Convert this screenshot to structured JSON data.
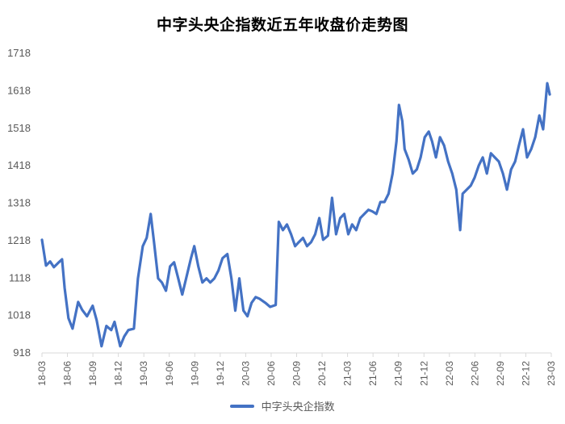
{
  "chart_data": {
    "type": "line",
    "title": "中字头央企指数近五年收盘价走势图",
    "xlabel": "",
    "ylabel": "",
    "ylim": [
      918,
      1718
    ],
    "yticks": [
      918,
      1018,
      1118,
      1218,
      1318,
      1418,
      1518,
      1618,
      1718
    ],
    "xticks": [
      "18-03",
      "18-06",
      "18-09",
      "18-12",
      "19-03",
      "19-06",
      "19-09",
      "19-12",
      "20-03",
      "20-06",
      "20-09",
      "20-12",
      "21-03",
      "21-06",
      "21-09",
      "21-12",
      "22-03",
      "22-06",
      "22-09",
      "22-12",
      "23-03"
    ],
    "grid": false,
    "legend_position": "bottom",
    "line_color": "#4472C4",
    "series": [
      {
        "name": "中字头央企指数",
        "points": [
          [
            0.0,
            1220
          ],
          [
            0.16,
            1151
          ],
          [
            0.32,
            1162
          ],
          [
            0.47,
            1147
          ],
          [
            0.63,
            1158
          ],
          [
            0.79,
            1168
          ],
          [
            0.89,
            1091
          ],
          [
            1.04,
            1011
          ],
          [
            1.2,
            983
          ],
          [
            1.42,
            1054
          ],
          [
            1.58,
            1033
          ],
          [
            1.77,
            1016
          ],
          [
            1.99,
            1044
          ],
          [
            2.15,
            1005
          ],
          [
            2.34,
            936
          ],
          [
            2.53,
            990
          ],
          [
            2.72,
            979
          ],
          [
            2.85,
            1001
          ],
          [
            3.07,
            936
          ],
          [
            3.23,
            962
          ],
          [
            3.39,
            979
          ],
          [
            3.61,
            983
          ],
          [
            3.77,
            1117
          ],
          [
            3.96,
            1203
          ],
          [
            4.11,
            1225
          ],
          [
            4.27,
            1289
          ],
          [
            4.4,
            1214
          ],
          [
            4.56,
            1117
          ],
          [
            4.71,
            1106
          ],
          [
            4.87,
            1084
          ],
          [
            5.03,
            1149
          ],
          [
            5.19,
            1160
          ],
          [
            5.35,
            1117
          ],
          [
            5.51,
            1074
          ],
          [
            5.66,
            1117
          ],
          [
            5.85,
            1171
          ],
          [
            5.98,
            1203
          ],
          [
            6.14,
            1149
          ],
          [
            6.3,
            1106
          ],
          [
            6.46,
            1117
          ],
          [
            6.61,
            1106
          ],
          [
            6.77,
            1117
          ],
          [
            6.93,
            1138
          ],
          [
            7.09,
            1171
          ],
          [
            7.28,
            1182
          ],
          [
            7.44,
            1117
          ],
          [
            7.59,
            1031
          ],
          [
            7.75,
            1117
          ],
          [
            7.91,
            1031
          ],
          [
            8.07,
            1016
          ],
          [
            8.23,
            1052
          ],
          [
            8.39,
            1067
          ],
          [
            8.54,
            1063
          ],
          [
            8.77,
            1052
          ],
          [
            8.96,
            1041
          ],
          [
            9.18,
            1046
          ],
          [
            9.3,
            1268
          ],
          [
            9.46,
            1246
          ],
          [
            9.62,
            1261
          ],
          [
            9.78,
            1235
          ],
          [
            9.94,
            1203
          ],
          [
            10.09,
            1214
          ],
          [
            10.25,
            1225
          ],
          [
            10.41,
            1203
          ],
          [
            10.57,
            1214
          ],
          [
            10.73,
            1235
          ],
          [
            10.89,
            1278
          ],
          [
            11.04,
            1220
          ],
          [
            11.23,
            1231
          ],
          [
            11.39,
            1332
          ],
          [
            11.55,
            1235
          ],
          [
            11.71,
            1278
          ],
          [
            11.87,
            1289
          ],
          [
            12.03,
            1235
          ],
          [
            12.18,
            1261
          ],
          [
            12.34,
            1246
          ],
          [
            12.5,
            1278
          ],
          [
            12.66,
            1289
          ],
          [
            12.82,
            1300
          ],
          [
            12.97,
            1296
          ],
          [
            13.13,
            1289
          ],
          [
            13.29,
            1321
          ],
          [
            13.45,
            1321
          ],
          [
            13.61,
            1343
          ],
          [
            13.77,
            1397
          ],
          [
            13.92,
            1483
          ],
          [
            14.02,
            1580
          ],
          [
            14.15,
            1537
          ],
          [
            14.24,
            1462
          ],
          [
            14.4,
            1434
          ],
          [
            14.56,
            1397
          ],
          [
            14.72,
            1408
          ],
          [
            14.87,
            1440
          ],
          [
            15.03,
            1494
          ],
          [
            15.19,
            1509
          ],
          [
            15.32,
            1483
          ],
          [
            15.47,
            1440
          ],
          [
            15.63,
            1494
          ],
          [
            15.79,
            1472
          ],
          [
            15.95,
            1429
          ],
          [
            16.11,
            1397
          ],
          [
            16.27,
            1354
          ],
          [
            16.42,
            1246
          ],
          [
            16.52,
            1343
          ],
          [
            16.68,
            1354
          ],
          [
            16.84,
            1365
          ],
          [
            16.99,
            1386
          ],
          [
            17.15,
            1418
          ],
          [
            17.31,
            1440
          ],
          [
            17.47,
            1397
          ],
          [
            17.63,
            1451
          ],
          [
            17.78,
            1440
          ],
          [
            17.94,
            1429
          ],
          [
            18.1,
            1397
          ],
          [
            18.26,
            1354
          ],
          [
            18.42,
            1408
          ],
          [
            18.58,
            1429
          ],
          [
            18.73,
            1472
          ],
          [
            18.89,
            1515
          ],
          [
            19.05,
            1440
          ],
          [
            19.21,
            1462
          ],
          [
            19.37,
            1494
          ],
          [
            19.53,
            1552
          ],
          [
            19.68,
            1515
          ],
          [
            19.84,
            1638
          ],
          [
            19.94,
            1608
          ]
        ]
      }
    ]
  },
  "legend": {
    "label": "中字头央企指数",
    "color": "#4472C4"
  }
}
